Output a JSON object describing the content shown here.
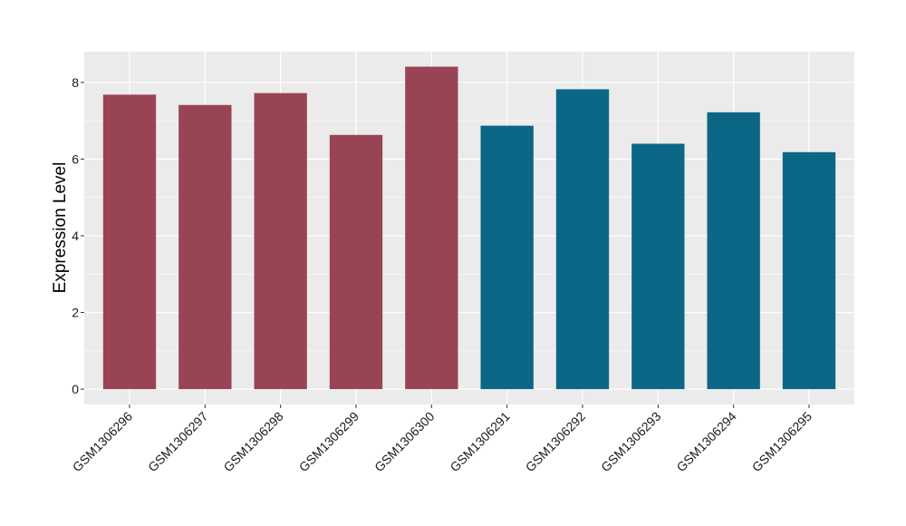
{
  "chart_data": {
    "type": "bar",
    "title": "",
    "xlabel": "",
    "ylabel": "Expression Level",
    "categories": [
      "GSM1306296",
      "GSM1306297",
      "GSM1306298",
      "GSM1306299",
      "GSM1306300",
      "GSM1306291",
      "GSM1306292",
      "GSM1306293",
      "GSM1306294",
      "GSM1306295"
    ],
    "values": [
      7.68,
      7.41,
      7.72,
      6.63,
      8.41,
      6.87,
      7.82,
      6.4,
      7.22,
      6.18
    ],
    "bar_colors": [
      "#994455",
      "#994455",
      "#994455",
      "#994455",
      "#994455",
      "#0c6685",
      "#0c6685",
      "#0c6685",
      "#0c6685",
      "#0c6685"
    ],
    "yticks": [
      0,
      2,
      4,
      6,
      8
    ],
    "ylim": [
      -0.4,
      8.8
    ],
    "grid": true,
    "legend": "none",
    "panel_color": "#ebebeb",
    "grid_color": "#ffffff"
  }
}
